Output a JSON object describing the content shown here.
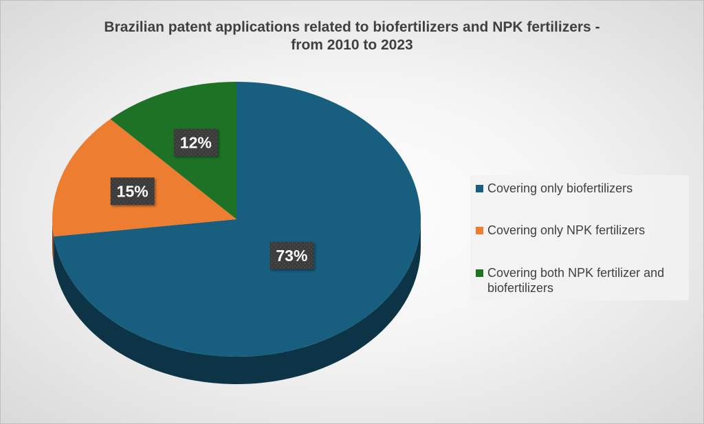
{
  "chart_data": {
    "type": "pie",
    "title_lines": [
      "Brazilian patent applications related to biofertilizers and NPK fertilizers -",
      "from 2010 to 2023"
    ],
    "slices": [
      {
        "name": "Covering only biofertilizers",
        "value": 73,
        "label": "73%",
        "color": "#175e7f"
      },
      {
        "name": "Covering only NPK fertilizers",
        "value": 15,
        "label": "15%",
        "color": "#ed7d31"
      },
      {
        "name": "Covering both NPK fertilizer and biofertilizers",
        "value": 12,
        "label": "12%",
        "color": "#1e7226"
      }
    ],
    "legend_position": "right"
  }
}
